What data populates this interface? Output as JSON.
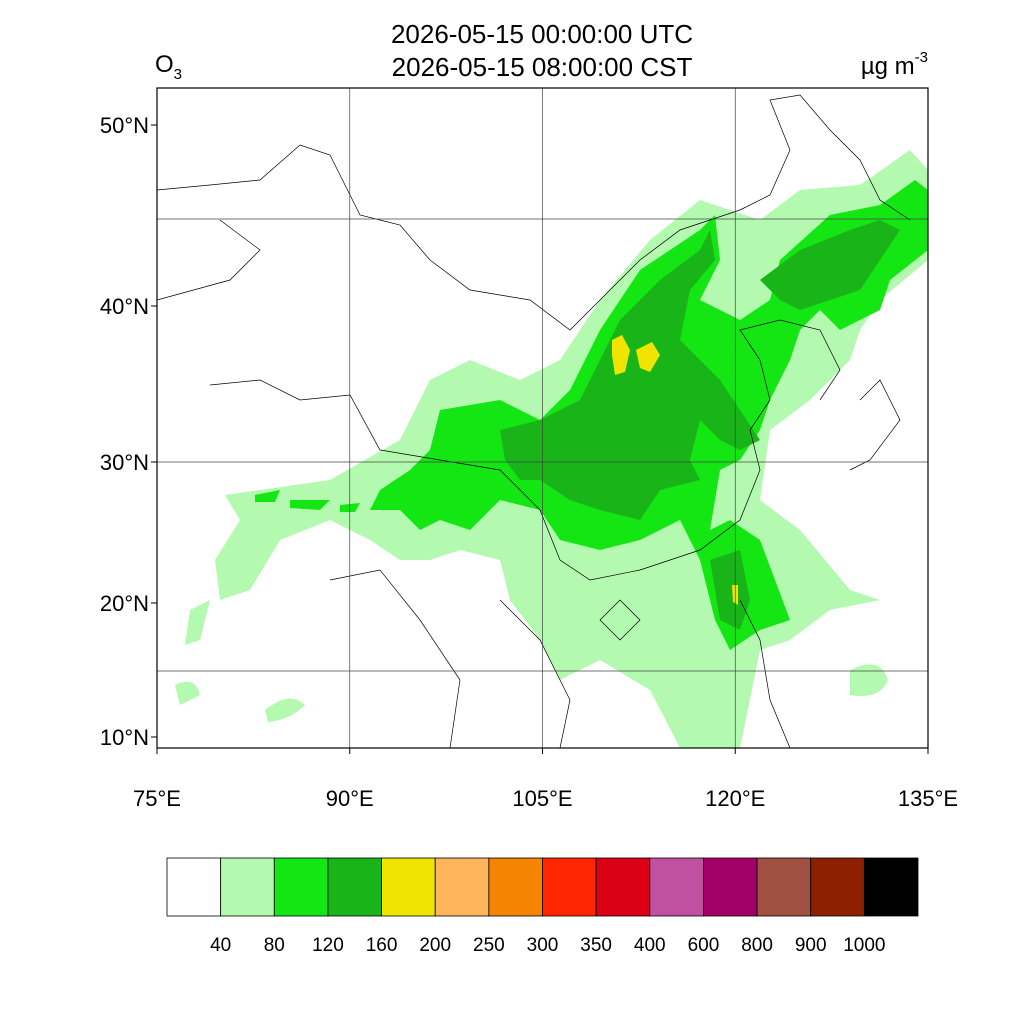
{
  "title": [
    "2026-05-15 00:00:00 UTC",
    "2026-05-15 08:00:00 CST"
  ],
  "variable": {
    "base": "O",
    "subscript": "3"
  },
  "units": {
    "base": "µg m",
    "superscript": "-3"
  },
  "map": {
    "lon_ticks": [
      {
        "value": 75,
        "label": "75°E"
      },
      {
        "value": 90,
        "label": "90°E"
      },
      {
        "value": 105,
        "label": "105°E"
      },
      {
        "value": 120,
        "label": "120°E"
      },
      {
        "value": 135,
        "label": "135°E"
      }
    ],
    "lat_ticks": [
      {
        "value": 50,
        "label": "50°N"
      },
      {
        "value": 40,
        "label": "40°N"
      },
      {
        "value": 30,
        "label": "30°N"
      },
      {
        "value": 20,
        "label": "20°N"
      },
      {
        "value": 10,
        "label": "10°N"
      }
    ]
  },
  "colorbar": {
    "colors": [
      "#ffffff",
      "#b4f9b0",
      "#14e614",
      "#18b418",
      "#f0e400",
      "#feb45a",
      "#f58500",
      "#ff2600",
      "#dc0016",
      "#c050a0",
      "#a00068",
      "#a05040",
      "#8c2000",
      "#000000"
    ],
    "levels": [
      40,
      80,
      120,
      160,
      200,
      250,
      300,
      350,
      400,
      600,
      800,
      900,
      1000
    ]
  }
}
